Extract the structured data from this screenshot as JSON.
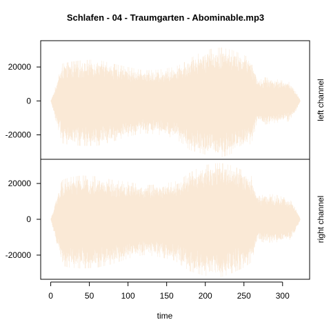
{
  "chart_data": {
    "type": "line",
    "title": "Schlafen - 04 - Traumgarten - Abominable.mp3",
    "xlabel": "time",
    "xlim": [
      -13,
      335
    ],
    "x_ticks": [
      0,
      50,
      100,
      150,
      200,
      250,
      300
    ],
    "y_ticks": [
      -20000,
      0,
      20000
    ],
    "grid": false,
    "line_color": "#fae9d6",
    "panels": [
      {
        "name": "left channel",
        "ylabel": "left channel",
        "ylim": [
          -34400,
          35500
        ],
        "envelope": {
          "t": [
            0,
            4,
            8,
            15,
            25,
            40,
            60,
            80,
            100,
            120,
            140,
            160,
            170,
            180,
            195,
            210,
            220,
            235,
            250,
            260,
            266,
            270,
            276,
            290,
            310,
            318,
            322,
            323
          ],
          "upper": [
            0,
            5000,
            12000,
            22000,
            23000,
            24000,
            24500,
            22000,
            20000,
            18000,
            18500,
            20000,
            22000,
            25000,
            29000,
            31000,
            31500,
            30000,
            27000,
            25000,
            15000,
            12000,
            14000,
            13000,
            11000,
            5000,
            1500,
            0
          ],
          "lower": [
            0,
            -7000,
            -14000,
            -25000,
            -26000,
            -26500,
            -26500,
            -24000,
            -21000,
            -19000,
            -20000,
            -22000,
            -25000,
            -29000,
            -31000,
            -33000,
            -33500,
            -31000,
            -28000,
            -25000,
            -14000,
            -12000,
            -14000,
            -13000,
            -12000,
            -5500,
            -1500,
            0
          ]
        }
      },
      {
        "name": "right channel",
        "ylabel": "right channel",
        "ylim": [
          -33500,
          33500
        ],
        "envelope": {
          "t": [
            0,
            4,
            8,
            15,
            25,
            40,
            60,
            80,
            100,
            120,
            140,
            160,
            170,
            180,
            195,
            210,
            220,
            235,
            250,
            260,
            266,
            270,
            276,
            290,
            310,
            318,
            322,
            323
          ],
          "upper": [
            0,
            6000,
            14000,
            22000,
            23500,
            24500,
            24000,
            22000,
            21000,
            19000,
            19500,
            21000,
            23000,
            26000,
            30000,
            31000,
            31500,
            30000,
            27000,
            24000,
            15000,
            13000,
            14000,
            14000,
            11000,
            5000,
            1500,
            0
          ],
          "lower": [
            0,
            -7000,
            -15000,
            -26000,
            -27000,
            -27500,
            -27000,
            -25000,
            -22000,
            -20000,
            -21000,
            -23000,
            -26000,
            -29000,
            -31000,
            -32500,
            -32500,
            -30000,
            -27000,
            -24000,
            -14000,
            -12000,
            -13000,
            -13000,
            -11500,
            -5500,
            -1500,
            0
          ]
        }
      }
    ]
  }
}
